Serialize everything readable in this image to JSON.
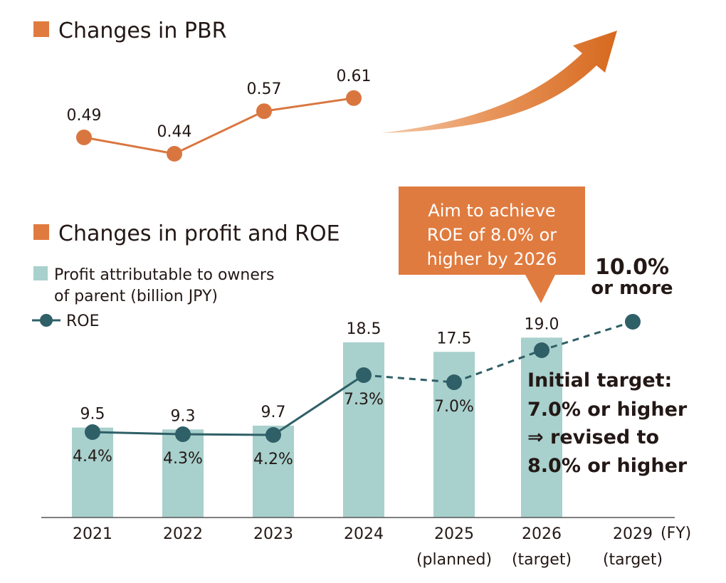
{
  "colors": {
    "accent": "#e07b3f",
    "pbr_line": "#d9763f",
    "bar": "#a8d0cd",
    "roe_line": "#2f5f67",
    "callout_bg": "#e07b3f",
    "text": "#231815"
  },
  "chart_data": [
    {
      "type": "line",
      "title": "Changes in PBR",
      "series": [
        {
          "values": [
            0.49,
            0.44,
            0.57,
            0.61
          ]
        }
      ],
      "value_labels": [
        "0.49",
        "0.44",
        "0.57",
        "0.61"
      ],
      "trend_arrow": "upward-arrow"
    },
    {
      "type": "bar",
      "title": "Changes in profit and ROE",
      "x_unit": "(FY)",
      "categories": [
        "2021",
        "2022",
        "2023",
        "2024",
        "2025",
        "2026",
        "2029"
      ],
      "category_sublabels": [
        "",
        "",
        "",
        "",
        "(planned)",
        "(target)",
        "(target)"
      ],
      "legend": {
        "bar_label_line1": "Profit attributable to owners",
        "bar_label_line2": "of parent (billion JPY)",
        "line_label": "ROE"
      },
      "series": [
        {
          "name": "Profit attributable to owners of parent (billion JPY)",
          "type": "bar",
          "values": [
            9.5,
            9.3,
            9.7,
            18.5,
            17.5,
            19.0,
            null
          ],
          "labels": [
            "9.5",
            "9.3",
            "9.7",
            "18.5",
            "17.5",
            "19.0",
            ""
          ]
        },
        {
          "name": "ROE",
          "type": "line",
          "values": [
            4.4,
            4.3,
            4.2,
            7.3,
            7.0,
            8.0,
            10.0
          ],
          "labels": [
            "4.4%",
            "4.3%",
            "4.2%",
            "7.3%",
            "7.0%",
            "",
            ""
          ],
          "dashed_from_index": 3
        }
      ],
      "callout": {
        "lines": [
          "Aim to achieve",
          "ROE of 8.0% or",
          "higher by 2026"
        ]
      },
      "target_label": {
        "lines": [
          "10.0%",
          "or more"
        ]
      },
      "note": {
        "lines": [
          "Initial target:",
          "7.0% or higher",
          "⇒ revised to",
          "8.0% or higher"
        ]
      }
    }
  ]
}
